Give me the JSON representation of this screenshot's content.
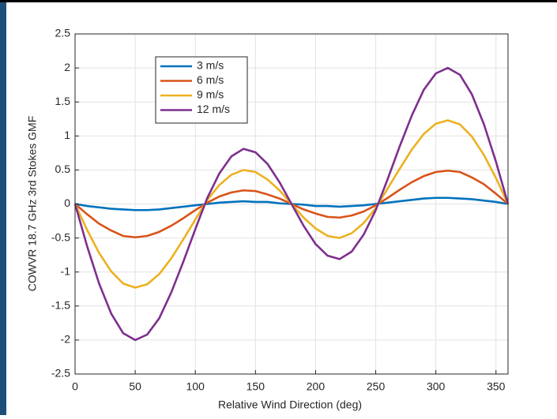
{
  "chart_data": {
    "type": "line",
    "xlabel": "Relative Wind Direction (deg)",
    "ylabel": "COWVR 18.7 GHz 3rd Stokes GMF",
    "x": [
      0,
      10,
      20,
      30,
      40,
      50,
      60,
      70,
      80,
      90,
      100,
      110,
      120,
      130,
      140,
      150,
      160,
      170,
      180,
      190,
      200,
      210,
      220,
      230,
      240,
      250,
      260,
      270,
      280,
      290,
      300,
      310,
      320,
      330,
      340,
      350,
      360
    ],
    "series": [
      {
        "name": "3 m/s",
        "color": "#0072bd",
        "values": [
          0,
          -0.03,
          -0.05,
          -0.07,
          -0.08,
          -0.09,
          -0.09,
          -0.08,
          -0.06,
          -0.04,
          -0.02,
          0,
          0.02,
          0.03,
          0.04,
          0.03,
          0.03,
          0.01,
          0,
          -0.01,
          -0.03,
          -0.03,
          -0.04,
          -0.03,
          -0.02,
          0,
          0.02,
          0.04,
          0.06,
          0.08,
          0.09,
          0.09,
          0.08,
          0.07,
          0.05,
          0.03,
          0
        ]
      },
      {
        "name": "6 m/s",
        "color": "#d95319",
        "values": [
          0,
          -0.15,
          -0.29,
          -0.39,
          -0.47,
          -0.49,
          -0.47,
          -0.41,
          -0.32,
          -0.21,
          -0.09,
          0.02,
          0.11,
          0.17,
          0.2,
          0.19,
          0.14,
          0.08,
          0,
          -0.08,
          -0.14,
          -0.19,
          -0.2,
          -0.17,
          -0.11,
          -0.02,
          0.09,
          0.21,
          0.32,
          0.41,
          0.47,
          0.49,
          0.47,
          0.39,
          0.29,
          0.15,
          0
        ]
      },
      {
        "name": "9 m/s",
        "color": "#edb120",
        "values": [
          0,
          -0.38,
          -0.72,
          -0.99,
          -1.17,
          -1.23,
          -1.18,
          -1.03,
          -0.8,
          -0.52,
          -0.23,
          0.06,
          0.28,
          0.43,
          0.5,
          0.47,
          0.36,
          0.2,
          0,
          -0.2,
          -0.36,
          -0.47,
          -0.5,
          -0.43,
          -0.28,
          -0.06,
          0.23,
          0.52,
          0.8,
          1.03,
          1.18,
          1.23,
          1.17,
          0.99,
          0.72,
          0.38,
          0
        ]
      },
      {
        "name": "12 m/s",
        "color": "#7e2f8e",
        "values": [
          0,
          -0.62,
          -1.17,
          -1.61,
          -1.9,
          -2,
          -1.92,
          -1.68,
          -1.3,
          -0.85,
          -0.37,
          0.09,
          0.45,
          0.7,
          0.81,
          0.76,
          0.59,
          0.32,
          0,
          -0.32,
          -0.59,
          -0.76,
          -0.81,
          -0.7,
          -0.45,
          -0.09,
          0.37,
          0.85,
          1.3,
          1.68,
          1.92,
          2,
          1.9,
          1.61,
          1.17,
          0.62,
          0
        ]
      }
    ],
    "xlim": [
      0,
      360
    ],
    "xticks": [
      0,
      50,
      100,
      150,
      200,
      250,
      300,
      350
    ],
    "ylim": [
      -2.5,
      2.5
    ],
    "yticks": [
      -2.5,
      -2,
      -1.5,
      -1,
      -0.5,
      0,
      0.5,
      1,
      1.5,
      2,
      2.5
    ],
    "grid": true,
    "legend": "upper left"
  }
}
